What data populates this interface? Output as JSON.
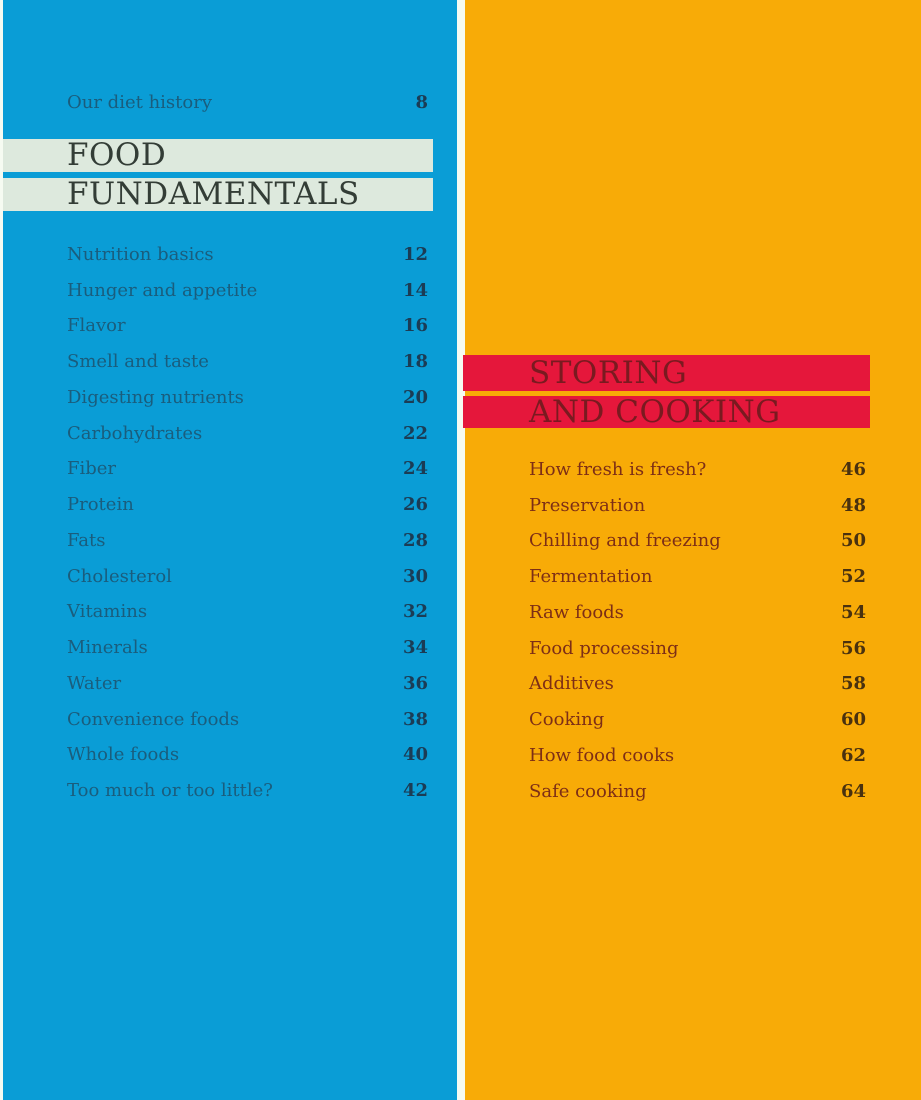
{
  "colors": {
    "left_bg": "#0A9DD6",
    "right_bg": "#F8AB07",
    "left_title_bar": "#DDE9DD",
    "right_title_bar": "#E5173B",
    "page_gap": "#F6FBF2",
    "left_label_text": "#1A5D7D",
    "left_number_text": "#1B3C55",
    "left_title_text": "#333D36",
    "right_label_text": "#7D2E16",
    "right_number_text": "#49310F",
    "right_title_text": "#7A1A20"
  },
  "left": {
    "intro": {
      "label": "Our diet history",
      "page": "8"
    },
    "title_line1": "FOOD",
    "title_line2": "FUNDAMENTALS",
    "items": [
      {
        "label": "Nutrition basics",
        "page": "12"
      },
      {
        "label": "Hunger and appetite",
        "page": "14"
      },
      {
        "label": "Flavor",
        "page": "16"
      },
      {
        "label": "Smell and taste",
        "page": "18"
      },
      {
        "label": "Digesting nutrients",
        "page": "20"
      },
      {
        "label": "Carbohydrates",
        "page": "22"
      },
      {
        "label": "Fiber",
        "page": "24"
      },
      {
        "label": "Protein",
        "page": "26"
      },
      {
        "label": "Fats",
        "page": "28"
      },
      {
        "label": "Cholesterol",
        "page": "30"
      },
      {
        "label": "Vitamins",
        "page": "32"
      },
      {
        "label": "Minerals",
        "page": "34"
      },
      {
        "label": "Water",
        "page": "36"
      },
      {
        "label": "Convenience foods",
        "page": "38"
      },
      {
        "label": "Whole foods",
        "page": "40"
      },
      {
        "label": "Too much or too little?",
        "page": "42"
      }
    ]
  },
  "right": {
    "title_line1": "STORING",
    "title_line2": "AND COOKING",
    "items": [
      {
        "label": "How fresh is fresh?",
        "page": "46"
      },
      {
        "label": "Preservation",
        "page": "48"
      },
      {
        "label": "Chilling and freezing",
        "page": "50"
      },
      {
        "label": "Fermentation",
        "page": "52"
      },
      {
        "label": "Raw foods",
        "page": "54"
      },
      {
        "label": "Food processing",
        "page": "56"
      },
      {
        "label": "Additives",
        "page": "58"
      },
      {
        "label": "Cooking",
        "page": "60"
      },
      {
        "label": "How food cooks",
        "page": "62"
      },
      {
        "label": "Safe cooking",
        "page": "64"
      }
    ]
  }
}
